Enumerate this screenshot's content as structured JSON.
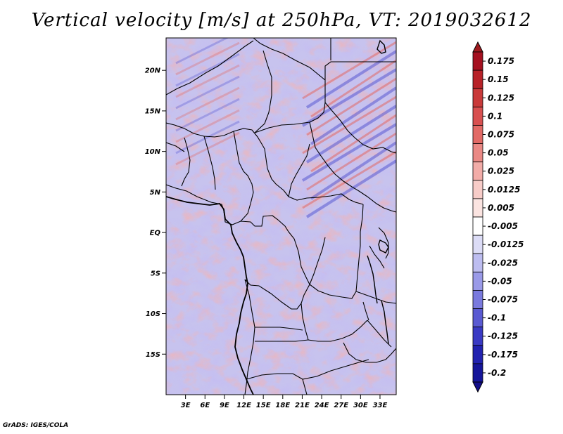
{
  "title": "Vertical velocity [m/s] at 250hPa, VT: 2019032612",
  "credit": "GrADS: IGES/COLA",
  "map": {
    "lon_range": [
      0,
      35.5
    ],
    "lat_range": [
      -20,
      24
    ],
    "lat_ticks": [
      {
        "label": "20N",
        "lat": 20
      },
      {
        "label": "15N",
        "lat": 15
      },
      {
        "label": "10N",
        "lat": 10
      },
      {
        "label": "5N",
        "lat": 5
      },
      {
        "label": "EQ",
        "lat": 0
      },
      {
        "label": "5S",
        "lat": -5
      },
      {
        "label": "10S",
        "lat": -10
      },
      {
        "label": "15S",
        "lat": -15
      }
    ],
    "lon_ticks": [
      {
        "label": "3E",
        "lon": 3
      },
      {
        "label": "6E",
        "lon": 6
      },
      {
        "label": "9E",
        "lon": 9
      },
      {
        "label": "12E",
        "lon": 12
      },
      {
        "label": "15E",
        "lon": 15
      },
      {
        "label": "18E",
        "lon": 18
      },
      {
        "label": "21E",
        "lon": 21
      },
      {
        "label": "24E",
        "lon": 24
      },
      {
        "label": "27E",
        "lon": 27
      },
      {
        "label": "30E",
        "lon": 30
      },
      {
        "label": "33E",
        "lon": 33
      }
    ]
  },
  "colorbar": {
    "levels": [
      {
        "label": "0.175",
        "color": "#a51020"
      },
      {
        "label": "0.15",
        "color": "#b82228"
      },
      {
        "label": "0.125",
        "color": "#c93a3a"
      },
      {
        "label": "0.1",
        "color": "#d85050"
      },
      {
        "label": "0.075",
        "color": "#e26a66"
      },
      {
        "label": "0.05",
        "color": "#ea8985"
      },
      {
        "label": "0.025",
        "color": "#f2aca8"
      },
      {
        "label": "0.0125",
        "color": "#f7ccc8"
      },
      {
        "label": "0.005",
        "color": "#fbe4e1"
      },
      {
        "label": "-0.005",
        "color": "#ffffff"
      },
      {
        "label": "-0.0125",
        "color": "#dcdcf6"
      },
      {
        "label": "-0.025",
        "color": "#bdbdf0"
      },
      {
        "label": "-0.05",
        "color": "#9a9ae8"
      },
      {
        "label": "-0.075",
        "color": "#7a7ade"
      },
      {
        "label": "-0.1",
        "color": "#5a5ad2"
      },
      {
        "label": "-0.125",
        "color": "#3a3ac4"
      },
      {
        "label": "-0.175",
        "color": "#2222b0"
      },
      {
        "label": "-0.2",
        "color": "#15159a"
      }
    ],
    "top_color": "#9e1a1e",
    "bottom_color": "#120e8a"
  }
}
